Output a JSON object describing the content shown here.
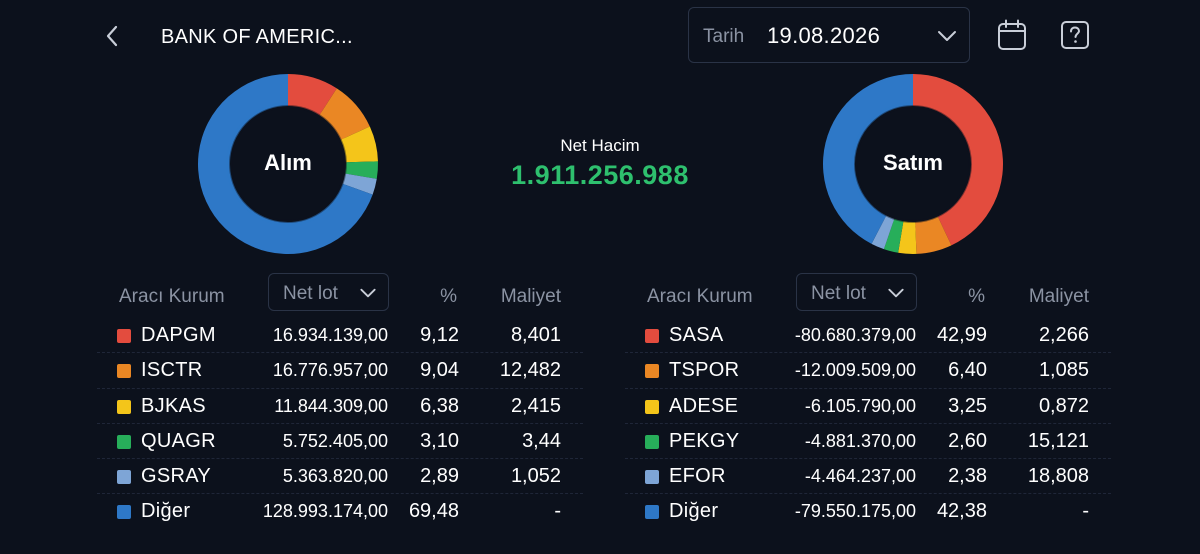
{
  "header": {
    "title": "BANK OF AMERIC...",
    "date_label": "Tarih",
    "date_value": "19.08.2026",
    "icons": {
      "back": "chevron-left-icon",
      "date_dropdown": "chevron-down-icon",
      "calendar": "calendar-icon",
      "help": "help-icon"
    }
  },
  "summary": {
    "net_label": "Net Hacim",
    "net_value": "1.911.256.988",
    "net_color": "#2ec06e"
  },
  "colors": [
    "#e34c3e",
    "#ea8724",
    "#f4c51a",
    "#27ae5a",
    "#7ea5d6",
    "#2e78c7"
  ],
  "buy": {
    "chart_label": "Alım",
    "headers": {
      "kurum": "Aracı Kurum",
      "sort": "Net lot",
      "pct": "%",
      "cost": "Maliyet"
    },
    "rows": [
      {
        "code": "DAPGM",
        "lot": "16.934.139,00",
        "pct": "9,12",
        "cost": "8,401"
      },
      {
        "code": "ISCTR",
        "lot": "16.776.957,00",
        "pct": "9,04",
        "cost": "12,482"
      },
      {
        "code": "BJKAS",
        "lot": "11.844.309,00",
        "pct": "6,38",
        "cost": "2,415"
      },
      {
        "code": "QUAGR",
        "lot": "5.752.405,00",
        "pct": "3,10",
        "cost": "3,44"
      },
      {
        "code": "GSRAY",
        "lot": "5.363.820,00",
        "pct": "2,89",
        "cost": "1,052"
      },
      {
        "code": "Diğer",
        "lot": "128.993.174,00",
        "pct": "69,48",
        "cost": "-"
      }
    ]
  },
  "sell": {
    "chart_label": "Satım",
    "headers": {
      "kurum": "Aracı Kurum",
      "sort": "Net lot",
      "pct": "%",
      "cost": "Maliyet"
    },
    "rows": [
      {
        "code": "SASA",
        "lot": "-80.680.379,00",
        "pct": "42,99",
        "cost": "2,266"
      },
      {
        "code": "TSPOR",
        "lot": "-12.009.509,00",
        "pct": "6,40",
        "cost": "1,085"
      },
      {
        "code": "ADESE",
        "lot": "-6.105.790,00",
        "pct": "3,25",
        "cost": "0,872"
      },
      {
        "code": "PEKGY",
        "lot": "-4.881.370,00",
        "pct": "2,60",
        "cost": "15,121"
      },
      {
        "code": "EFOR",
        "lot": "-4.464.237,00",
        "pct": "2,38",
        "cost": "18,808"
      },
      {
        "code": "Diğer",
        "lot": "-79.550.175,00",
        "pct": "42,38",
        "cost": "-"
      }
    ]
  }
}
